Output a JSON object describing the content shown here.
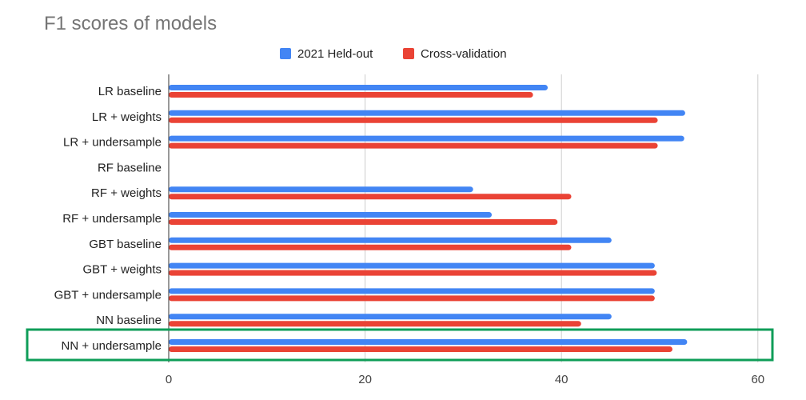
{
  "chart_data": {
    "type": "bar",
    "orientation": "horizontal",
    "title": "F1 scores of models",
    "xlabel": "",
    "ylabel": "",
    "categories": [
      "LR baseline",
      "LR + weights",
      "LR + undersample",
      "RF baseline",
      "RF + weights",
      "RF + undersample",
      "GBT baseline",
      "GBT + weights",
      "GBT + undersample",
      "NN baseline",
      "NN + undersample"
    ],
    "series": [
      {
        "name": "2021 Held-out",
        "color": "#4285f4",
        "values": [
          38.6,
          52.6,
          52.5,
          0,
          31.0,
          32.9,
          45.1,
          49.5,
          49.5,
          45.1,
          52.8
        ]
      },
      {
        "name": "Cross-validation",
        "color": "#ea4335",
        "values": [
          37.1,
          49.8,
          49.8,
          0,
          41.0,
          39.6,
          41.0,
          49.7,
          49.5,
          42.0,
          51.3
        ]
      }
    ],
    "xlim": [
      0,
      61.5
    ],
    "xticks": [
      0,
      20,
      40,
      60
    ],
    "grid": true,
    "legend": "top-center",
    "highlight": {
      "category": "NN + undersample",
      "color": "#0f9d58"
    }
  }
}
